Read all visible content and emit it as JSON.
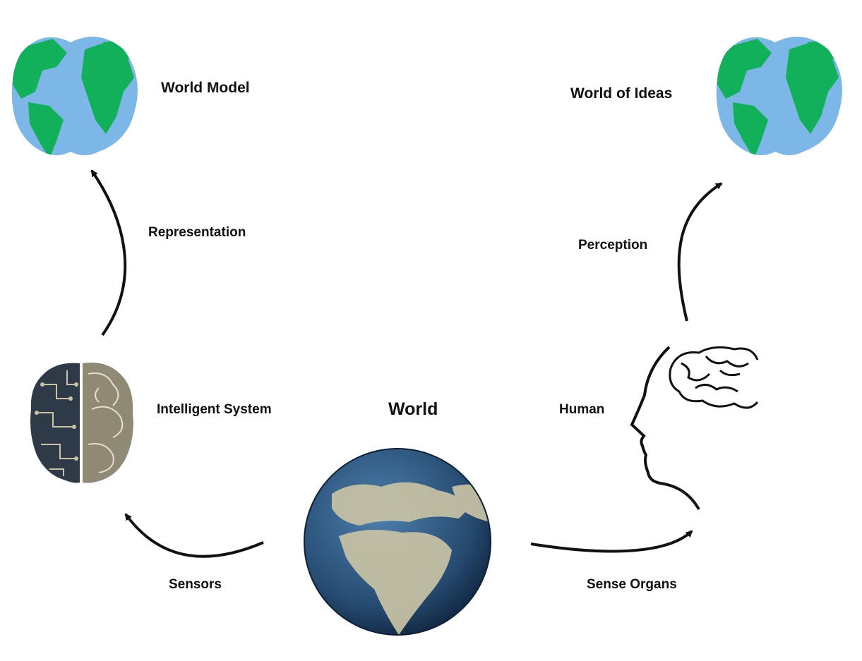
{
  "labels": {
    "world_model": "World Model",
    "world_of_ideas": "World of Ideas",
    "representation": "Representation",
    "perception": "Perception",
    "intelligent_system": "Intelligent System",
    "world": "World",
    "human": "Human",
    "sensors": "Sensors",
    "sense_organs": "Sense Organs"
  },
  "colors": {
    "ocean_flat": "#7db7e8",
    "land_flat": "#13b05c",
    "ocean_real": "#2f5a86",
    "land_real": "#c9c3a4",
    "arrow": "#111111"
  },
  "icons": {
    "world_model": "flat-globe-icon",
    "world_of_ideas": "flat-globe-icon",
    "world": "earth-photo-icon",
    "intelligent_system": "circuit-brain-icon",
    "human": "human-head-brain-icon"
  }
}
